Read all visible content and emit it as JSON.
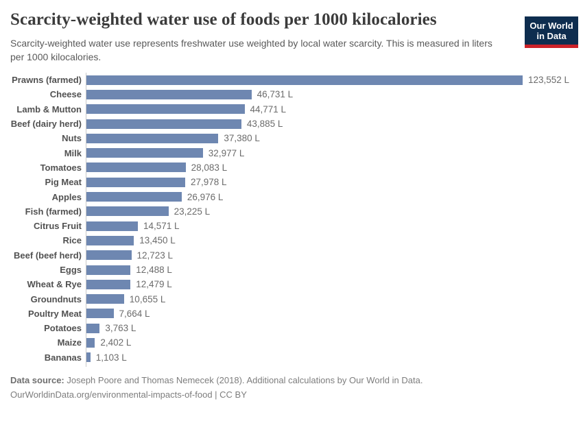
{
  "header": {
    "logo": {
      "line1": "Our World",
      "line2": "in Data"
    }
  },
  "chart_data": {
    "type": "bar",
    "orientation": "horizontal",
    "title": "Scarcity-weighted water use of foods per 1000 kilocalories",
    "subtitle": "Scarcity-weighted water use represents freshwater use weighted by local water scarcity. This is measured in liters per 1000 kilocalories.",
    "xlabel": "",
    "ylabel": "",
    "unit": "liters per 1000 kilocalories",
    "xlim": [
      0,
      123552
    ],
    "grid": false,
    "legend": "none",
    "bar_color": "#6e87b1",
    "categories": [
      "Prawns (farmed)",
      "Cheese",
      "Lamb & Mutton",
      "Beef (dairy herd)",
      "Nuts",
      "Milk",
      "Tomatoes",
      "Pig Meat",
      "Apples",
      "Fish (farmed)",
      "Citrus Fruit",
      "Rice",
      "Beef (beef herd)",
      "Eggs",
      "Wheat & Rye",
      "Groundnuts",
      "Poultry Meat",
      "Potatoes",
      "Maize",
      "Bananas"
    ],
    "values": [
      123552,
      46731,
      44771,
      43885,
      37380,
      32977,
      28083,
      27978,
      26976,
      23225,
      14571,
      13450,
      12723,
      12488,
      12479,
      10655,
      7664,
      3763,
      2402,
      1103
    ],
    "value_labels": [
      "123,552 L",
      "46,731 L",
      "44,771 L",
      "43,885 L",
      "37,380 L",
      "32,977 L",
      "28,083 L",
      "27,978 L",
      "26,976 L",
      "23,225 L",
      "14,571 L",
      "13,450 L",
      "12,723 L",
      "12,488 L",
      "12,479 L",
      "10,655 L",
      "7,664 L",
      "3,763 L",
      "2,402 L",
      "1,103 L"
    ]
  },
  "footer": {
    "source_label": "Data source:",
    "source_text": " Joseph Poore and Thomas Nemecek (2018). Additional calculations by Our World in Data.",
    "link_line": "OurWorldinData.org/environmental-impacts-of-food | CC BY"
  }
}
